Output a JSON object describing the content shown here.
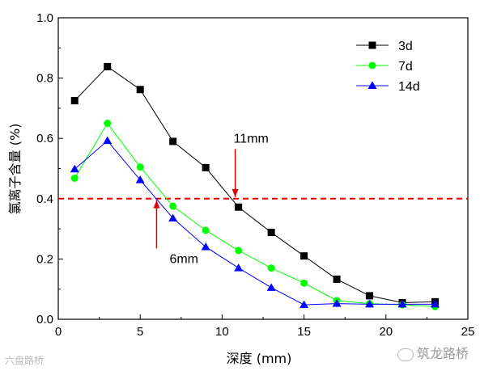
{
  "chart_data": {
    "type": "line",
    "xlabel": "深度 (mm)",
    "ylabel": "氯离子含量 (%)",
    "xlim": [
      0,
      25
    ],
    "ylim": [
      0.0,
      1.0
    ],
    "xticks": [
      0,
      5,
      10,
      15,
      20,
      25
    ],
    "xtick_labels": [
      "0",
      "5",
      "10",
      "15",
      "20",
      "25"
    ],
    "yticks": [
      0.0,
      0.2,
      0.4,
      0.6,
      0.8,
      1.0
    ],
    "ytick_labels": [
      "0.0",
      "0.2",
      "0.4",
      "0.6",
      "0.8",
      "1.0"
    ],
    "grid": false,
    "legend_position": "top-right",
    "series": [
      {
        "name": "3d",
        "color": "#000000",
        "marker": "square",
        "x": [
          1,
          3,
          5,
          7,
          9,
          11,
          13,
          15,
          17,
          19,
          21,
          23
        ],
        "y": [
          0.725,
          0.838,
          0.762,
          0.59,
          0.503,
          0.372,
          0.288,
          0.21,
          0.133,
          0.078,
          0.055,
          0.058
        ]
      },
      {
        "name": "7d",
        "color": "#00ff00",
        "marker": "circle",
        "x": [
          1,
          3,
          5,
          7,
          9,
          11,
          13,
          15,
          17,
          19,
          21,
          23
        ],
        "y": [
          0.468,
          0.65,
          0.505,
          0.375,
          0.295,
          0.228,
          0.17,
          0.12,
          0.062,
          0.052,
          0.048,
          0.042
        ]
      },
      {
        "name": "14d",
        "color": "#0000ff",
        "marker": "triangle",
        "x": [
          1,
          3,
          5,
          7,
          9,
          11,
          13,
          15,
          17,
          19,
          21,
          23
        ],
        "y": [
          0.498,
          0.592,
          0.462,
          0.335,
          0.24,
          0.17,
          0.105,
          0.048,
          0.052,
          0.05,
          0.05,
          0.05
        ]
      }
    ],
    "reference_line": {
      "y": 0.4,
      "color": "#e00000",
      "style": "dashed"
    },
    "annotations": [
      {
        "text": "11mm",
        "arrow_x": 10.8,
        "arrow_from_y": 0.565,
        "arrow_to_y": 0.405,
        "color": "#e00000"
      },
      {
        "text": "6mm",
        "arrow_x": 6.0,
        "arrow_from_y": 0.235,
        "arrow_to_y": 0.395,
        "color": "#e00000"
      }
    ]
  },
  "watermarks": {
    "left": "六盘路桥",
    "right": "筑龙路桥"
  }
}
